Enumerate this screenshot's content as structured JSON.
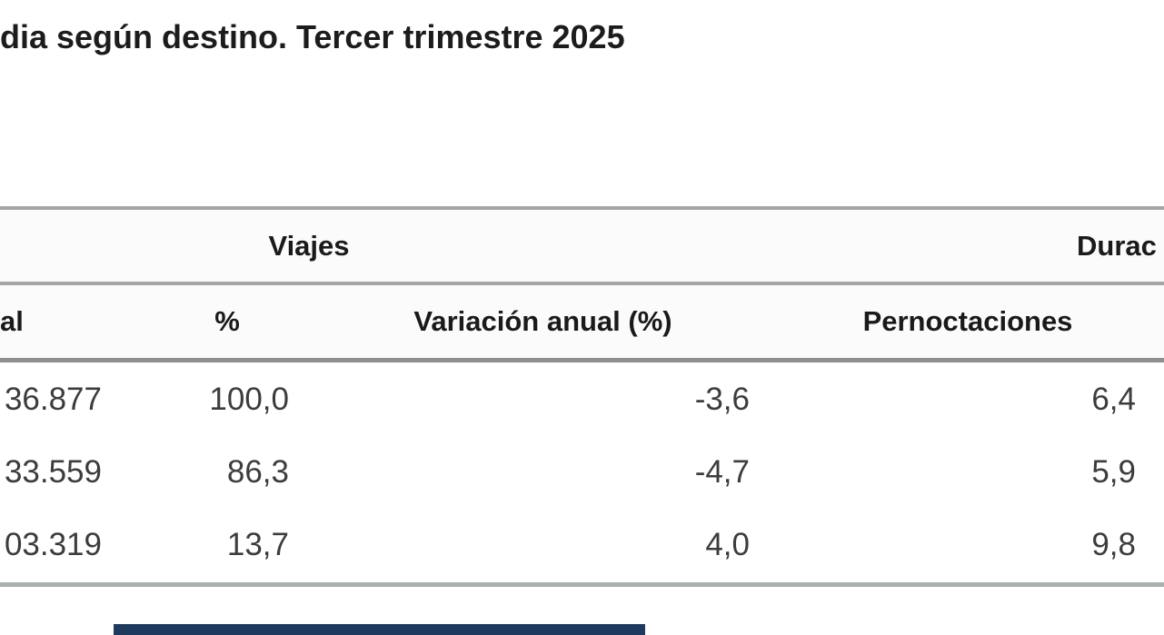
{
  "page": {
    "title": "dia según destino. Tercer trimestre 2025",
    "background": "#ffffff"
  },
  "table": {
    "group_headers": {
      "viajes": "Viajes",
      "duracion": "Durac"
    },
    "columns": {
      "total": "al",
      "percent": "%",
      "variacion": "Variación anual (%)",
      "pernoctaciones": "Pernoctaciones"
    },
    "rows": [
      {
        "total": "36.877",
        "percent": "100,0",
        "variacion": "-3,6",
        "pernoctaciones": "6,4"
      },
      {
        "total": "33.559",
        "percent": "86,3",
        "variacion": "-4,7",
        "pernoctaciones": "5,9"
      },
      {
        "total": "03.319",
        "percent": "13,7",
        "variacion": "4,0",
        "pernoctaciones": "9,8"
      }
    ],
    "border_color": "#a5a5a5",
    "header_separator_color": "#8f8f8f",
    "bottom_border_color": "#a8b1ad"
  },
  "scrollbar": {
    "thumb_color": "#1e3a5f"
  }
}
